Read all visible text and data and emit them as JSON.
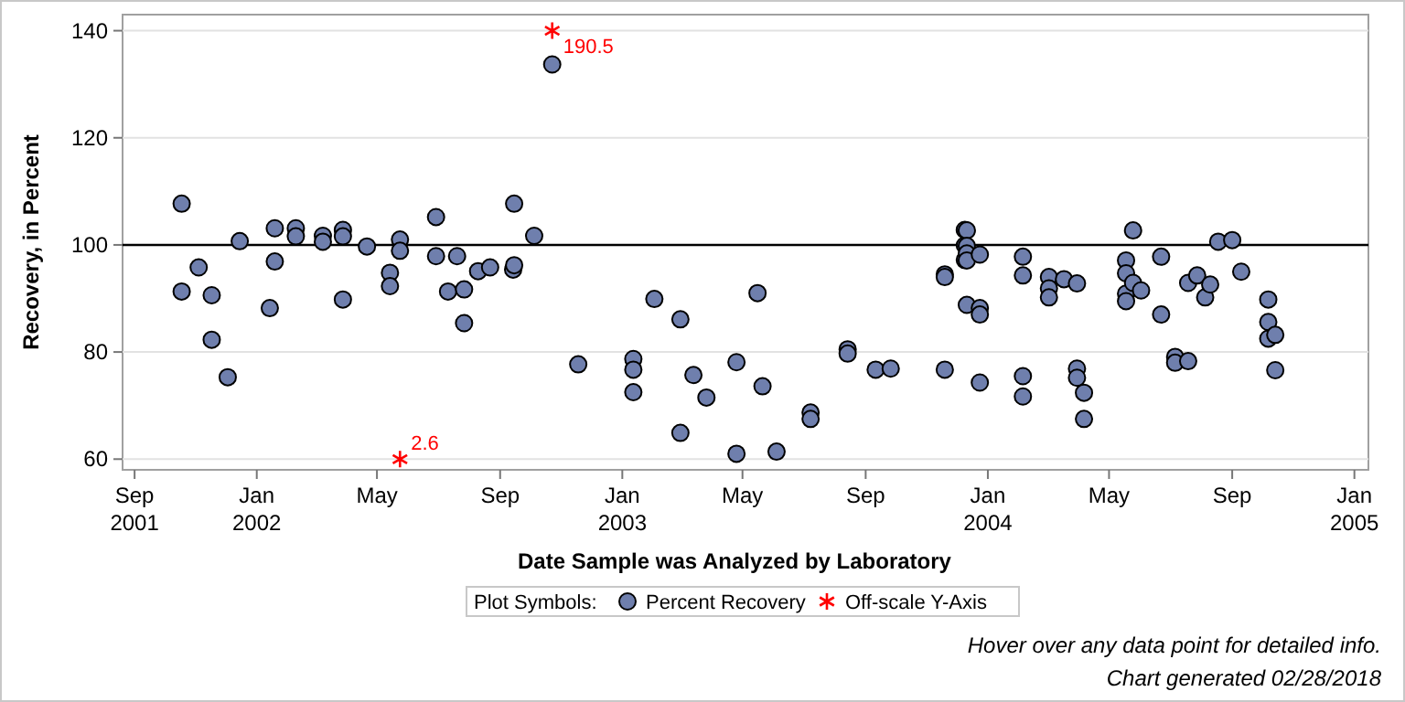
{
  "chart_data": {
    "type": "scatter",
    "xlabel": "Date Sample was Analyzed by Laboratory",
    "ylabel": "Recovery, in Percent",
    "legend_title": "Plot Symbols:",
    "legend": "bottom",
    "grid": "y",
    "xlim": [
      "2001-08-20",
      "2005-01-15"
    ],
    "xticks": [
      {
        "value": "2001-09-01",
        "label": "Sep\n2001"
      },
      {
        "value": "2002-01-01",
        "label": "Jan\n2002"
      },
      {
        "value": "2002-05-01",
        "label": "May"
      },
      {
        "value": "2002-09-01",
        "label": "Sep"
      },
      {
        "value": "2003-01-01",
        "label": "Jan\n2003"
      },
      {
        "value": "2003-05-01",
        "label": "May"
      },
      {
        "value": "2003-09-01",
        "label": "Sep"
      },
      {
        "value": "2004-01-01",
        "label": "Jan\n2004"
      },
      {
        "value": "2004-05-01",
        "label": "May"
      },
      {
        "value": "2004-09-01",
        "label": "Sep"
      },
      {
        "value": "2005-01-01",
        "label": "Jan\n2005"
      }
    ],
    "ylim": [
      58,
      143
    ],
    "yticks": [
      60,
      80,
      100,
      120,
      140
    ],
    "ref_lines": [
      {
        "axis": "y",
        "value": 100,
        "color": "#000000"
      }
    ],
    "series": [
      {
        "name": "Percent Recovery",
        "color": "#6f7fad",
        "marker": "circle",
        "x": [
          "2001-10-18",
          "2001-10-18",
          "2001-11-04",
          "2001-11-17",
          "2001-11-17",
          "2001-12-03",
          "2001-12-15",
          "2002-01-14",
          "2002-01-19",
          "2002-01-19",
          "2002-02-09",
          "2002-02-09",
          "2002-03-08",
          "2002-03-08",
          "2002-03-28",
          "2002-03-28",
          "2002-03-28",
          "2002-04-21",
          "2002-05-14",
          "2002-05-14",
          "2002-05-24",
          "2002-05-24",
          "2002-06-29",
          "2002-06-29",
          "2002-07-11",
          "2002-07-20",
          "2002-07-27",
          "2002-07-27",
          "2002-08-10",
          "2002-08-22",
          "2002-09-14",
          "2002-09-15",
          "2002-09-15",
          "2002-10-05",
          "2002-10-23",
          "2002-11-18",
          "2003-01-12",
          "2003-01-12",
          "2003-01-12",
          "2003-02-02",
          "2003-02-28",
          "2003-02-28",
          "2003-03-13",
          "2003-03-26",
          "2003-04-25",
          "2003-04-25",
          "2003-05-16",
          "2003-05-21",
          "2003-06-04",
          "2003-07-08",
          "2003-07-08",
          "2003-08-14",
          "2003-08-14",
          "2003-09-11",
          "2003-09-26",
          "2003-11-19",
          "2003-11-19",
          "2003-11-19",
          "2003-12-09",
          "2003-12-09",
          "2003-12-09",
          "2003-12-11",
          "2003-12-11",
          "2003-12-11",
          "2003-12-11",
          "2003-12-11",
          "2003-12-24",
          "2003-12-24",
          "2003-12-24",
          "2003-12-24",
          "2004-02-05",
          "2004-02-05",
          "2004-02-05",
          "2004-02-05",
          "2004-03-02",
          "2004-03-02",
          "2004-03-02",
          "2004-03-17",
          "2004-03-30",
          "2004-03-30",
          "2004-03-30",
          "2004-04-06",
          "2004-04-06",
          "2004-05-18",
          "2004-05-18",
          "2004-05-18",
          "2004-05-18",
          "2004-05-25",
          "2004-05-25",
          "2004-06-02",
          "2004-06-22",
          "2004-06-22",
          "2004-07-06",
          "2004-07-06",
          "2004-07-19",
          "2004-07-19",
          "2004-07-28",
          "2004-08-05",
          "2004-08-10",
          "2004-08-18",
          "2004-09-01",
          "2004-09-10",
          "2004-10-07",
          "2004-10-07",
          "2004-10-07",
          "2004-10-14",
          "2004-10-14"
        ],
        "values": [
          107.7,
          91.3,
          95.8,
          90.6,
          82.3,
          75.3,
          100.7,
          88.2,
          103.1,
          96.9,
          103.1,
          101.6,
          101.7,
          100.6,
          102.8,
          101.6,
          89.8,
          99.7,
          94.8,
          92.3,
          101.0,
          98.9,
          105.2,
          97.9,
          91.3,
          97.9,
          91.7,
          85.4,
          95.1,
          95.8,
          95.4,
          96.2,
          107.7,
          101.7,
          133.7,
          77.7,
          78.7,
          76.7,
          72.5,
          89.9,
          86.1,
          64.9,
          75.7,
          71.5,
          78.1,
          61.0,
          91.0,
          73.6,
          61.4,
          68.7,
          67.5,
          80.5,
          79.7,
          76.7,
          76.9,
          76.7,
          94.5,
          94.0,
          102.8,
          99.9,
          97.2,
          102.7,
          99.8,
          98.4,
          97.1,
          88.8,
          98.2,
          88.2,
          87.0,
          74.3,
          97.8,
          94.3,
          75.5,
          71.7,
          94.0,
          91.9,
          90.2,
          93.6,
          92.8,
          76.9,
          75.2,
          72.4,
          67.5,
          97.1,
          94.7,
          90.9,
          89.5,
          102.7,
          92.9,
          91.5,
          97.8,
          87.0,
          79.1,
          78.0,
          78.3,
          92.9,
          94.3,
          90.2,
          92.6,
          100.6,
          100.9,
          95.0,
          89.8,
          85.6,
          82.5,
          83.2,
          76.6
        ]
      },
      {
        "name": "Off-scale Y-Axis",
        "color": "#ff0000",
        "marker": "cross",
        "x": [
          "2002-10-23",
          "2002-05-24"
        ],
        "values": [
          140,
          60
        ]
      }
    ],
    "annotations": [
      {
        "text": "190.5",
        "x": "2002-10-23",
        "y": 140
      },
      {
        "text": "2.6",
        "x": "2002-05-24",
        "y": 60
      },
      "Hover over any data point for detailed info.",
      "Chart generated 02/28/2018"
    ]
  }
}
